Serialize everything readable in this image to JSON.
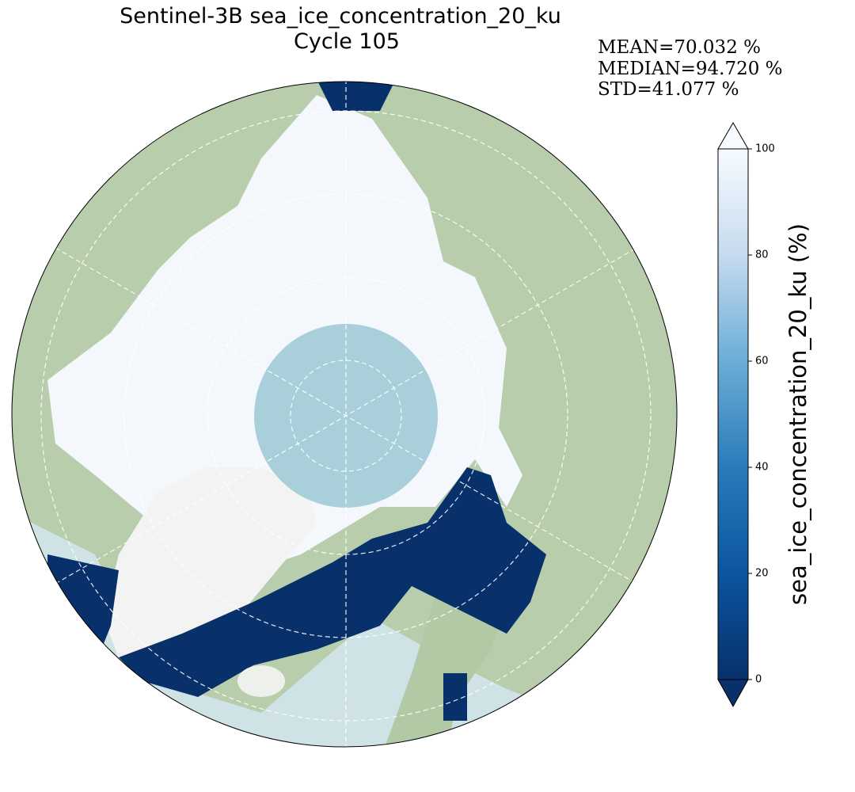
{
  "title": "Sentinel-3B sea_ice_concentration_20_ku",
  "subtitle": "Cycle 105",
  "stats": [
    "MEAN=70.032 %",
    "MEDIAN=94.720 %",
    "STD=41.077 %"
  ],
  "colorbar": {
    "label": "sea_ice_concentration_20_ku (%)",
    "lim": [
      0,
      100
    ],
    "ticks": [
      0,
      20,
      40,
      60,
      80,
      100
    ]
  }
}
